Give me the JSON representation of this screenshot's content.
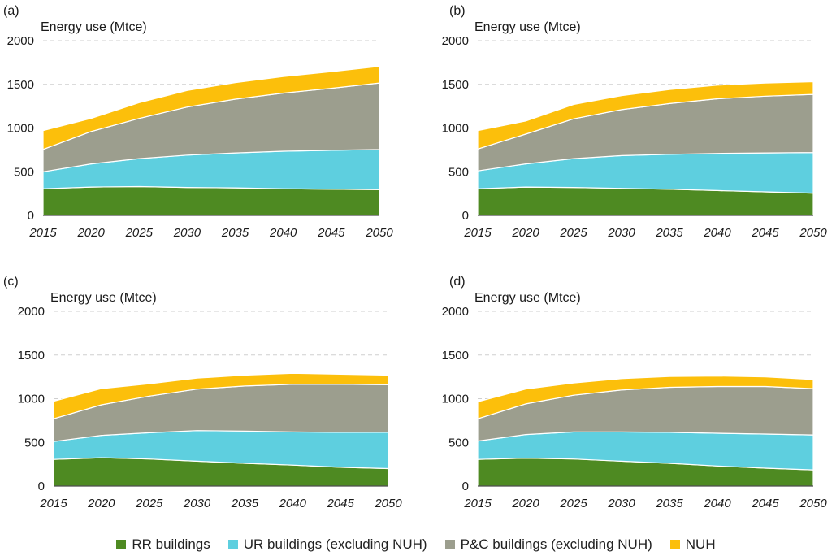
{
  "chart_data": [
    {
      "type": "area",
      "panel_label": "(a)",
      "ylabel": "Energy use (Mtce)",
      "x": [
        2015,
        2020,
        2025,
        2030,
        2035,
        2040,
        2045,
        2050
      ],
      "ylim": [
        0,
        2000
      ],
      "yticks": [
        0,
        500,
        1000,
        1500,
        2000
      ],
      "grid": true,
      "stacked": true,
      "series": [
        {
          "name": "RR buildings",
          "values": [
            305,
            325,
            330,
            320,
            315,
            305,
            300,
            295
          ]
        },
        {
          "name": "UR buildings (excluding NUH)",
          "values": [
            195,
            265,
            320,
            370,
            400,
            430,
            445,
            460
          ]
        },
        {
          "name": "P&C buildings (excluding NUH)",
          "values": [
            255,
            370,
            460,
            550,
            615,
            665,
            710,
            760
          ]
        },
        {
          "name": "NUH",
          "values": [
            215,
            150,
            180,
            190,
            190,
            190,
            190,
            190
          ]
        }
      ]
    },
    {
      "type": "area",
      "panel_label": "(b)",
      "ylabel": "Energy use (Mtce)",
      "x": [
        2015,
        2020,
        2025,
        2030,
        2035,
        2040,
        2045,
        2050
      ],
      "ylim": [
        0,
        2000
      ],
      "yticks": [
        0,
        500,
        1000,
        1500,
        2000
      ],
      "grid": true,
      "stacked": true,
      "series": [
        {
          "name": "RR buildings",
          "values": [
            305,
            325,
            320,
            310,
            300,
            285,
            270,
            255
          ]
        },
        {
          "name": "UR buildings (excluding NUH)",
          "values": [
            205,
            265,
            330,
            375,
            400,
            425,
            445,
            465
          ]
        },
        {
          "name": "P&C buildings (excluding NUH)",
          "values": [
            250,
            340,
            455,
            525,
            580,
            625,
            650,
            665
          ]
        },
        {
          "name": "NUH",
          "values": [
            210,
            150,
            165,
            160,
            160,
            155,
            150,
            145
          ]
        }
      ]
    },
    {
      "type": "area",
      "panel_label": "(c)",
      "ylabel": "Energy use (Mtce)",
      "x": [
        2015,
        2020,
        2025,
        2030,
        2035,
        2040,
        2045,
        2050
      ],
      "ylim": [
        0,
        2000
      ],
      "yticks": [
        0,
        500,
        1000,
        1500,
        2000
      ],
      "grid": true,
      "stacked": true,
      "series": [
        {
          "name": "RR buildings",
          "values": [
            305,
            325,
            310,
            285,
            260,
            240,
            215,
            200
          ]
        },
        {
          "name": "UR buildings (excluding NUH)",
          "values": [
            205,
            255,
            300,
            350,
            370,
            380,
            400,
            415
          ]
        },
        {
          "name": "P&C buildings (excluding NUH)",
          "values": [
            260,
            350,
            420,
            475,
            515,
            545,
            550,
            545
          ]
        },
        {
          "name": "NUH",
          "values": [
            200,
            185,
            140,
            125,
            125,
            125,
            115,
            110
          ]
        }
      ]
    },
    {
      "type": "area",
      "panel_label": "(d)",
      "ylabel": "Energy use (Mtce)",
      "x": [
        2015,
        2020,
        2025,
        2030,
        2035,
        2040,
        2045,
        2050
      ],
      "ylim": [
        0,
        2000
      ],
      "yticks": [
        0,
        500,
        1000,
        1500,
        2000
      ],
      "grid": true,
      "stacked": true,
      "series": [
        {
          "name": "RR buildings",
          "values": [
            305,
            320,
            310,
            285,
            260,
            230,
            205,
            185
          ]
        },
        {
          "name": "UR buildings (excluding NUH)",
          "values": [
            210,
            270,
            310,
            335,
            355,
            375,
            390,
            400
          ]
        },
        {
          "name": "P&C buildings (excluding NUH)",
          "values": [
            255,
            350,
            420,
            480,
            515,
            535,
            545,
            530
          ]
        },
        {
          "name": "NUH",
          "values": [
            195,
            170,
            140,
            130,
            125,
            120,
            110,
            105
          ]
        }
      ]
    }
  ],
  "colors": {
    "RR buildings": "#4e8a22",
    "UR buildings (excluding NUH)": "#5ecfdf",
    "P&C buildings (excluding NUH)": "#9c9e8e",
    "NUH": "#fcbf0b",
    "grid": "#cfcfcf",
    "axis": "#222222"
  },
  "legend": {
    "placement": "bottom-center",
    "items": [
      {
        "label": "RR buildings",
        "color": "#4e8a22"
      },
      {
        "label": "UR buildings (excluding NUH)",
        "color": "#5ecfdf"
      },
      {
        "label": "P&C buildings (excluding NUH)",
        "color": "#9c9e8e"
      },
      {
        "label": "NUH",
        "color": "#fcbf0b"
      }
    ]
  }
}
